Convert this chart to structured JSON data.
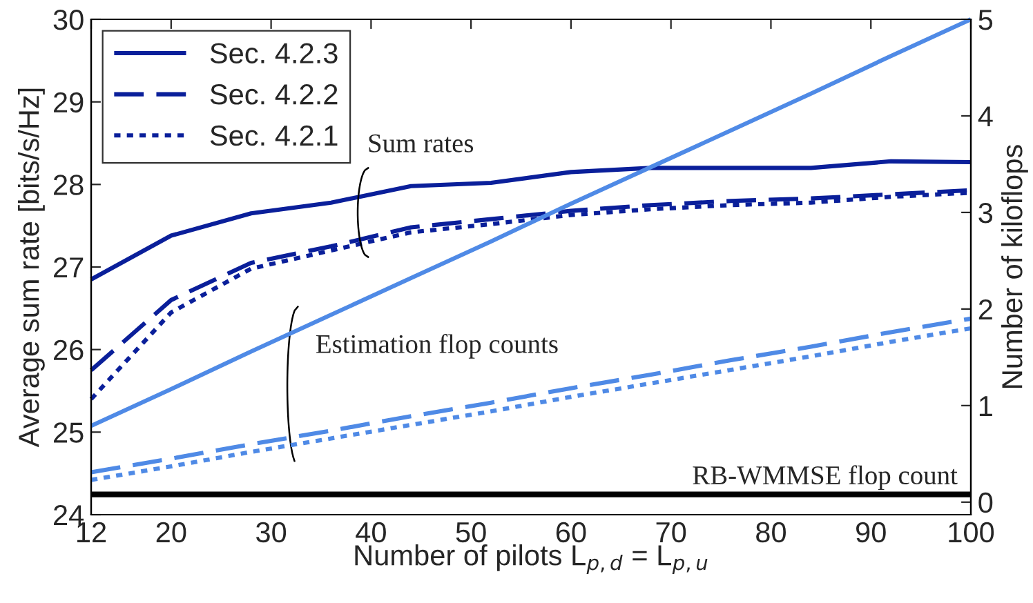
{
  "chart_data": {
    "type": "line",
    "xlabel": "Number of pilots L$_{p,d}$ = L$_{p,u}$",
    "ylabel": "Average sum rate [bits/s/Hz]",
    "y2label": "Number of kiloflops",
    "x": [
      12,
      20,
      28,
      36,
      44,
      52,
      60,
      68,
      76,
      84,
      92,
      100
    ],
    "series": [
      {
        "name": "Sec. 4.2.3",
        "color": "#0a1f9a",
        "line_style": "solid",
        "values": [
          26.85,
          27.38,
          27.65,
          27.78,
          27.98,
          28.02,
          28.15,
          28.2,
          28.2,
          28.2,
          28.28,
          28.27
        ]
      },
      {
        "name": "Sec. 4.2.2",
        "color": "#0a1f9a",
        "line_style": "dashed",
        "values": [
          25.75,
          26.6,
          27.05,
          27.25,
          27.48,
          27.58,
          27.68,
          27.75,
          27.8,
          27.83,
          27.88,
          27.93
        ]
      },
      {
        "name": "Sec. 4.2.1",
        "color": "#0a1f9a",
        "line_style": "dotted",
        "values": [
          25.4,
          26.45,
          26.98,
          27.2,
          27.42,
          27.52,
          27.63,
          27.7,
          27.75,
          27.78,
          27.85,
          27.9
        ]
      },
      {
        "axis": "y2",
        "color": "#4f8ae6",
        "line_style": "solid",
        "values": [
          0.79,
          1.17,
          1.56,
          1.94,
          2.32,
          2.7,
          3.09,
          3.47,
          3.85,
          4.23,
          4.62,
          5
        ]
      },
      {
        "axis": "y2",
        "color": "#4f8ae6",
        "line_style": "dashed",
        "values": [
          0.31,
          0.45,
          0.6,
          0.74,
          0.89,
          1.03,
          1.18,
          1.32,
          1.47,
          1.61,
          1.76,
          1.9
        ]
      },
      {
        "axis": "y2",
        "color": "#4f8ae6",
        "line_style": "dotted",
        "values": [
          0.23,
          0.37,
          0.52,
          0.66,
          0.8,
          0.94,
          1.09,
          1.23,
          1.37,
          1.51,
          1.66,
          1.8
        ]
      },
      {
        "axis": "y2",
        "color": "#000000",
        "line_style": "solid",
        "values": [
          0.08,
          0.08,
          0.08,
          0.08,
          0.08,
          0.08,
          0.08,
          0.08,
          0.08,
          0.08,
          0.08,
          0.08
        ]
      }
    ],
    "xlim": [
      12,
      100
    ],
    "xticks": [
      12,
      20,
      30,
      40,
      50,
      60,
      70,
      80,
      90,
      100
    ],
    "ylim": [
      24,
      30
    ],
    "yticks": [
      24,
      25,
      26,
      27,
      28,
      29,
      30
    ],
    "y2lim": [
      -0.13,
      5
    ],
    "y2ticks": [
      0,
      1,
      2,
      3,
      4,
      5
    ],
    "annotations": [
      "Sum rates",
      "Estimation flop counts",
      "RB-WMMSE flop count"
    ],
    "legend": "top left",
    "grid": false,
    "marker": "none"
  }
}
